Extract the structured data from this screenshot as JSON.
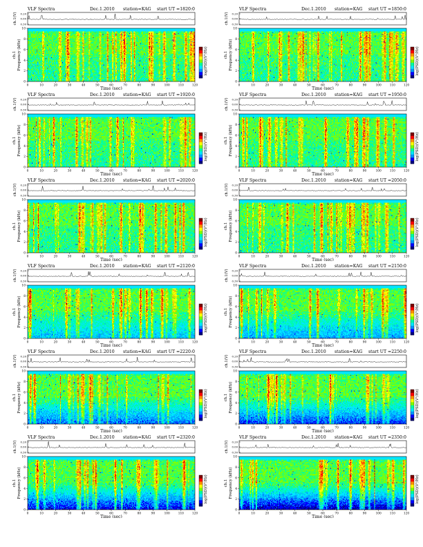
{
  "figure": {
    "title_prefix": "VLF Spectra",
    "date": "Dec.1.2010",
    "station": "station=KAG",
    "start_label": "start  UT =",
    "ylabel_top": "ch.1(V)",
    "ylabel_spec_line1": "ch.1",
    "ylabel_spec_line2": "Frequency  (kHz)",
    "colorbar_label": "log(PSD)(V²/Hz)",
    "xlabel": "Time  (sec)"
  },
  "chart_data": [
    {
      "type": "heatmap",
      "panel": 1,
      "start_ut": "1820:0",
      "title": "VLF Spectra  Dec.1.2010  station=KAG  start  UT =1820:0",
      "xlabel": "Time  (sec)",
      "ylabel": "Frequency  (kHz)",
      "xlim": [
        0,
        120
      ],
      "ylim": [
        0,
        10
      ],
      "xticks": [
        0,
        10,
        20,
        30,
        40,
        50,
        60,
        70,
        80,
        90,
        100,
        110,
        120
      ],
      "yticks": [
        0,
        2,
        4,
        6,
        8,
        10
      ],
      "signal_ylim": [
        -0.3,
        0.3
      ],
      "signal_yticks": [
        "0.20",
        "0.00",
        "0.30"
      ]
    },
    {
      "type": "heatmap",
      "panel": 2,
      "start_ut": "1850:0",
      "title": "VLF Spectra  Dec.1.2010  station=KAG  start  UT =1850:0",
      "xlabel": "Time  (sec)",
      "ylabel": "Frequency  (kHz)",
      "xlim": [
        0,
        120
      ],
      "ylim": [
        0,
        10
      ],
      "xticks": [
        0,
        10,
        20,
        30,
        40,
        50,
        60,
        70,
        80,
        90,
        100,
        110,
        120
      ],
      "yticks": [
        0,
        2,
        4,
        6,
        8,
        10
      ],
      "signal_ylim": [
        -0.3,
        0.3
      ],
      "signal_yticks": [
        "0.20",
        "0.00",
        "0.30"
      ]
    },
    {
      "type": "heatmap",
      "panel": 3,
      "start_ut": "1920:0",
      "title": "VLF Spectra  Dec.1.2010  station=KAG  start  UT =1920:0",
      "xlabel": "Time  (sec)",
      "ylabel": "Frequency  (kHz)",
      "xlim": [
        0,
        120
      ],
      "ylim": [
        0,
        10
      ],
      "xticks": [
        0,
        10,
        20,
        30,
        40,
        50,
        60,
        70,
        80,
        90,
        100,
        110,
        120
      ],
      "yticks": [
        0,
        2,
        4,
        6,
        8,
        10
      ],
      "signal_ylim": [
        -0.3,
        0.3
      ],
      "signal_yticks": [
        "0.20",
        "0.00",
        "0.30"
      ]
    },
    {
      "type": "heatmap",
      "panel": 4,
      "start_ut": "1950:0",
      "title": "VLF Spectra  Dec.1.2010  station=KAG  start  UT =1950:0",
      "xlabel": "Time  (sec)",
      "ylabel": "Frequency  (kHz)",
      "xlim": [
        0,
        120
      ],
      "ylim": [
        0,
        10
      ],
      "xticks": [
        0,
        10,
        20,
        30,
        40,
        50,
        60,
        70,
        80,
        90,
        100,
        110,
        120
      ],
      "yticks": [
        0,
        2,
        4,
        6,
        8,
        10
      ],
      "signal_ylim": [
        -0.3,
        0.3
      ],
      "signal_yticks": [
        "0.20",
        "0.00",
        "0.30"
      ]
    },
    {
      "type": "heatmap",
      "panel": 5,
      "start_ut": "2020:0",
      "title": "VLF Spectra  Dec.1.2010  station=KAG  start  UT =2020:0",
      "xlabel": "Time  (sec)",
      "ylabel": "Frequency  (kHz)",
      "xlim": [
        0,
        120
      ],
      "ylim": [
        0,
        10
      ],
      "xticks": [
        0,
        10,
        20,
        30,
        40,
        50,
        60,
        70,
        80,
        90,
        100,
        110,
        120
      ],
      "yticks": [
        0,
        2,
        4,
        6,
        8,
        10
      ],
      "signal_ylim": [
        -0.3,
        0.3
      ],
      "signal_yticks": [
        "0.20",
        "0.00",
        "0.30"
      ]
    },
    {
      "type": "heatmap",
      "panel": 6,
      "start_ut": "2050:0",
      "title": "VLF Spectra  Dec.1.2010  station=KAG  start  UT =2050:0",
      "xlabel": "Time  (sec)",
      "ylabel": "Frequency  (kHz)",
      "xlim": [
        0,
        120
      ],
      "ylim": [
        0,
        10
      ],
      "xticks": [
        0,
        10,
        20,
        30,
        40,
        50,
        60,
        70,
        80,
        90,
        100,
        110,
        120
      ],
      "yticks": [
        0,
        2,
        4,
        6,
        8,
        10
      ],
      "signal_ylim": [
        -0.3,
        0.3
      ],
      "signal_yticks": [
        "0.20",
        "0.00",
        "0.30"
      ]
    },
    {
      "type": "heatmap",
      "panel": 7,
      "start_ut": "2120:0",
      "title": "VLF Spectra  Dec.1.2010  station=KAG  start  UT =2120:0",
      "xlabel": "Time  (sec)",
      "ylabel": "Frequency  (kHz)",
      "xlim": [
        0,
        120
      ],
      "ylim": [
        0,
        10
      ],
      "xticks": [
        0,
        10,
        20,
        30,
        40,
        50,
        60,
        70,
        80,
        90,
        100,
        110,
        120
      ],
      "yticks": [
        0,
        2,
        4,
        6,
        8,
        10
      ],
      "signal_ylim": [
        -0.3,
        0.3
      ],
      "signal_yticks": [
        "0.20",
        "0.00",
        "0.30"
      ]
    },
    {
      "type": "heatmap",
      "panel": 8,
      "start_ut": "2150:0",
      "title": "VLF Spectra  Dec.1.2010  station=KAG  start  UT =2150:0",
      "xlabel": "Time  (sec)",
      "ylabel": "Frequency  (kHz)",
      "xlim": [
        0,
        120
      ],
      "ylim": [
        0,
        10
      ],
      "xticks": [
        0,
        10,
        20,
        30,
        40,
        50,
        60,
        70,
        80,
        90,
        100,
        110,
        120
      ],
      "yticks": [
        0,
        2,
        4,
        6,
        8,
        10
      ],
      "signal_ylim": [
        -0.3,
        0.3
      ],
      "signal_yticks": [
        "0.20",
        "0.00",
        "0.30"
      ]
    },
    {
      "type": "heatmap",
      "panel": 9,
      "start_ut": "2220:0",
      "title": "VLF Spectra  Dec.1.2010  station=KAG  start  UT =2220:0",
      "xlabel": "Time  (sec)",
      "ylabel": "Frequency  (kHz)",
      "xlim": [
        0,
        120
      ],
      "ylim": [
        0,
        10
      ],
      "xticks": [
        0,
        10,
        20,
        30,
        40,
        50,
        60,
        70,
        80,
        90,
        100,
        110,
        120
      ],
      "yticks": [
        0,
        2,
        4,
        6,
        8,
        10
      ],
      "signal_ylim": [
        -0.3,
        0.3
      ],
      "signal_yticks": [
        "0.20",
        "0.00",
        "0.30"
      ]
    },
    {
      "type": "heatmap",
      "panel": 10,
      "start_ut": "2250:0",
      "title": "VLF Spectra  Dec.1.2010  station=KAG  start  UT =2250:0",
      "xlabel": "Time  (sec)",
      "ylabel": "Frequency  (kHz)",
      "xlim": [
        0,
        120
      ],
      "ylim": [
        0,
        10
      ],
      "xticks": [
        0,
        10,
        20,
        30,
        40,
        50,
        60,
        70,
        80,
        90,
        100,
        110,
        120
      ],
      "yticks": [
        0,
        2,
        4,
        6,
        8,
        10
      ],
      "signal_ylim": [
        -0.3,
        0.3
      ],
      "signal_yticks": [
        "0.20",
        "0.00",
        "0.30"
      ]
    },
    {
      "type": "heatmap",
      "panel": 11,
      "start_ut": "2320:0",
      "title": "VLF Spectra  Dec.1.2010  station=KAG  start  UT =2320:0",
      "xlabel": "Time  (sec)",
      "ylabel": "Frequency  (kHz)",
      "xlim": [
        0,
        120
      ],
      "ylim": [
        0,
        10
      ],
      "xticks": [
        0,
        10,
        20,
        30,
        40,
        50,
        60,
        70,
        80,
        90,
        100,
        110,
        120
      ],
      "yticks": [
        0,
        2,
        4,
        6,
        8,
        10
      ],
      "signal_ylim": [
        -0.3,
        0.3
      ],
      "signal_yticks": [
        "0.20",
        "0.00",
        "0.30"
      ]
    },
    {
      "type": "heatmap",
      "panel": 12,
      "start_ut": "2350:0",
      "title": "VLF Spectra  Dec.1.2010  station=KAG  start  UT =2350:0",
      "xlabel": "Time  (sec)",
      "ylabel": "Frequency  (kHz)",
      "xlim": [
        0,
        120
      ],
      "ylim": [
        0,
        10
      ],
      "xticks": [
        0,
        10,
        20,
        30,
        40,
        50,
        60,
        70,
        80,
        90,
        100,
        110,
        120
      ],
      "yticks": [
        0,
        2,
        4,
        6,
        8,
        10
      ],
      "signal_ylim": [
        -0.3,
        0.3
      ],
      "signal_yticks": [
        "0.20",
        "0.00",
        "0.30"
      ]
    }
  ],
  "colormap": [
    "#00007f",
    "#0000ff",
    "#0096ff",
    "#00e6ff",
    "#00ffa0",
    "#80ff00",
    "#ffff00",
    "#ff9000",
    "#ff0000",
    "#7f0000"
  ]
}
